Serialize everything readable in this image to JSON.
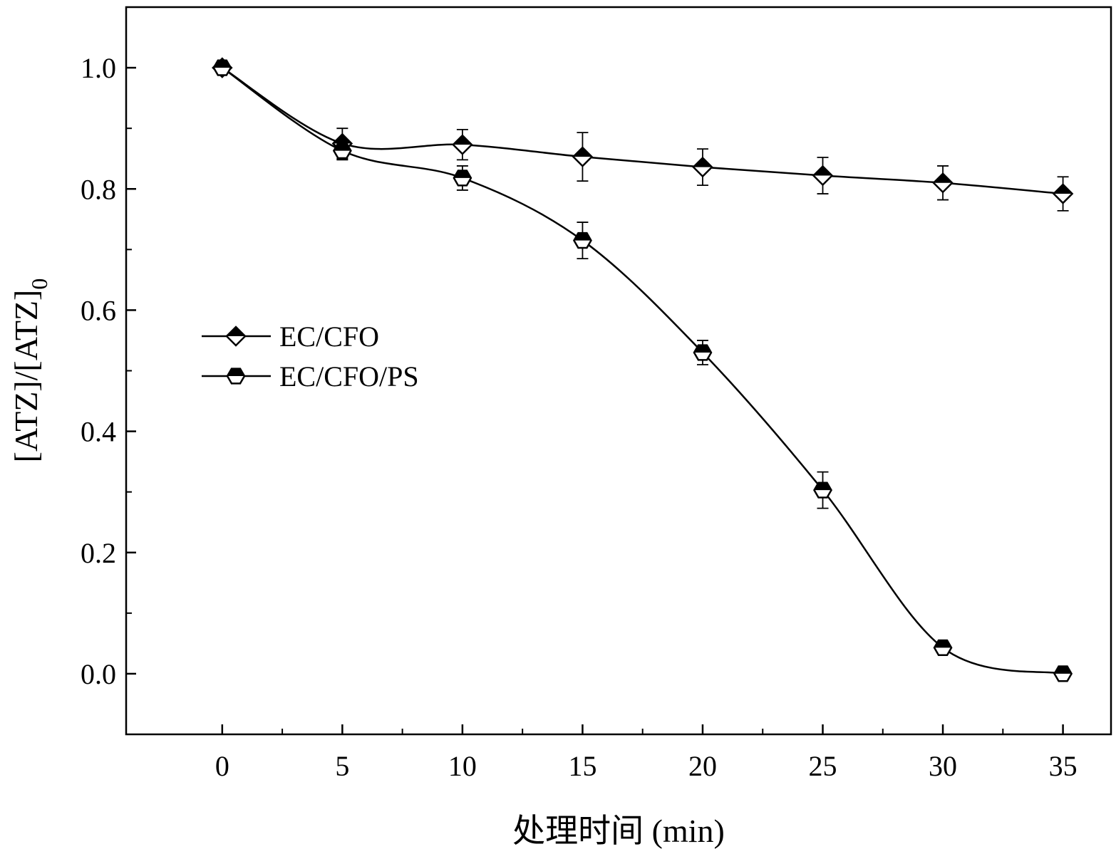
{
  "chart_data": {
    "type": "line",
    "xlabel": "处理时间 (min)",
    "ylabel_main": "[ATZ]/[ATZ]",
    "ylabel_subscript": "0",
    "xlim": [
      -4,
      37
    ],
    "ylim": [
      -0.1,
      1.1
    ],
    "x_ticks": [
      0,
      5,
      10,
      15,
      20,
      25,
      30,
      35
    ],
    "x_minor_ticks": [
      2.5,
      7.5,
      12.5,
      17.5,
      22.5,
      27.5,
      32.5
    ],
    "y_ticks": [
      0.0,
      0.2,
      0.4,
      0.6,
      0.8,
      1.0
    ],
    "y_tick_labels": [
      "0.0",
      "0.2",
      "0.4",
      "0.6",
      "0.8",
      "1.0"
    ],
    "y_minor_ticks": [
      0.1,
      0.3,
      0.5,
      0.7,
      0.9
    ],
    "grid": false,
    "legend_position": "center-left",
    "series": [
      {
        "name": "EC/CFO",
        "marker": "diamond-half-filled",
        "x": [
          0,
          5,
          10,
          15,
          20,
          25,
          30,
          35
        ],
        "y": [
          1.0,
          0.875,
          0.873,
          0.853,
          0.836,
          0.822,
          0.81,
          0.792
        ],
        "error": [
          0.0,
          0.025,
          0.025,
          0.04,
          0.03,
          0.03,
          0.028,
          0.028
        ]
      },
      {
        "name": "EC/CFO/PS",
        "marker": "hexagon-half-filled",
        "x": [
          0,
          5,
          10,
          15,
          20,
          25,
          30,
          35
        ],
        "y": [
          1.0,
          0.863,
          0.818,
          0.715,
          0.53,
          0.303,
          0.043,
          0.0
        ],
        "error": [
          0.0,
          0.015,
          0.02,
          0.03,
          0.02,
          0.03,
          0.01,
          0.01
        ]
      }
    ]
  }
}
